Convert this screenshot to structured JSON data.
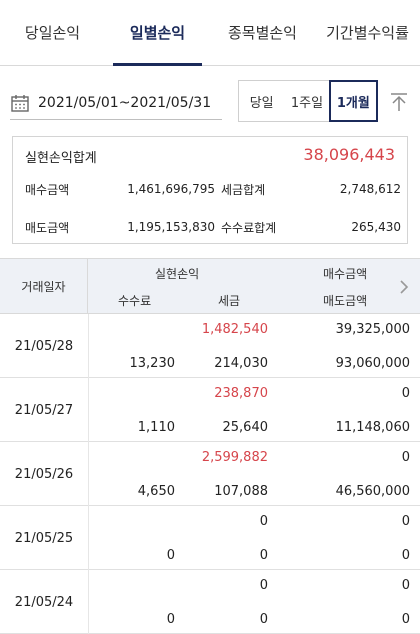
{
  "tabs": [
    {
      "label": "당일손익"
    },
    {
      "label": "일별손익"
    },
    {
      "label": "종목별손익"
    },
    {
      "label": "기간별수익률"
    }
  ],
  "date_range": "2021/05/01~2021/05/31",
  "periods": [
    {
      "label": "당일"
    },
    {
      "label": "1주일"
    },
    {
      "label": "1개월"
    }
  ],
  "summary": {
    "title": "실현손익합계",
    "total": "38,096,443",
    "buy_label": "매수금액",
    "buy_value": "1,461,696,795",
    "tax_label": "세금합계",
    "tax_value": "2,748,612",
    "sell_label": "매도금액",
    "sell_value": "1,195,153,830",
    "fee_label": "수수료합계",
    "fee_value": "265,430"
  },
  "table": {
    "col_date": "거래일자",
    "col_realized": "실현손익",
    "col_buy": "매수금액",
    "col_fee": "수수료",
    "col_tax": "세금",
    "col_sell": "매도금액",
    "rows": [
      {
        "date": "21/05/28",
        "realized": "1,482,540",
        "buy": "39,325,000",
        "fee": "13,230",
        "tax": "214,030",
        "sell": "93,060,000"
      },
      {
        "date": "21/05/27",
        "realized": "238,870",
        "buy": "0",
        "fee": "1,110",
        "tax": "25,640",
        "sell": "11,148,060"
      },
      {
        "date": "21/05/26",
        "realized": "2,599,882",
        "buy": "0",
        "fee": "4,650",
        "tax": "107,088",
        "sell": "46,560,000"
      },
      {
        "date": "21/05/25",
        "realized": "0",
        "buy": "0",
        "fee": "0",
        "tax": "0",
        "sell": "0"
      },
      {
        "date": "21/05/24",
        "realized": "0",
        "buy": "0",
        "fee": "0",
        "tax": "0",
        "sell": "0"
      }
    ]
  },
  "colors": {
    "accent": "#1b2a5a",
    "profit": "#d6454b"
  }
}
